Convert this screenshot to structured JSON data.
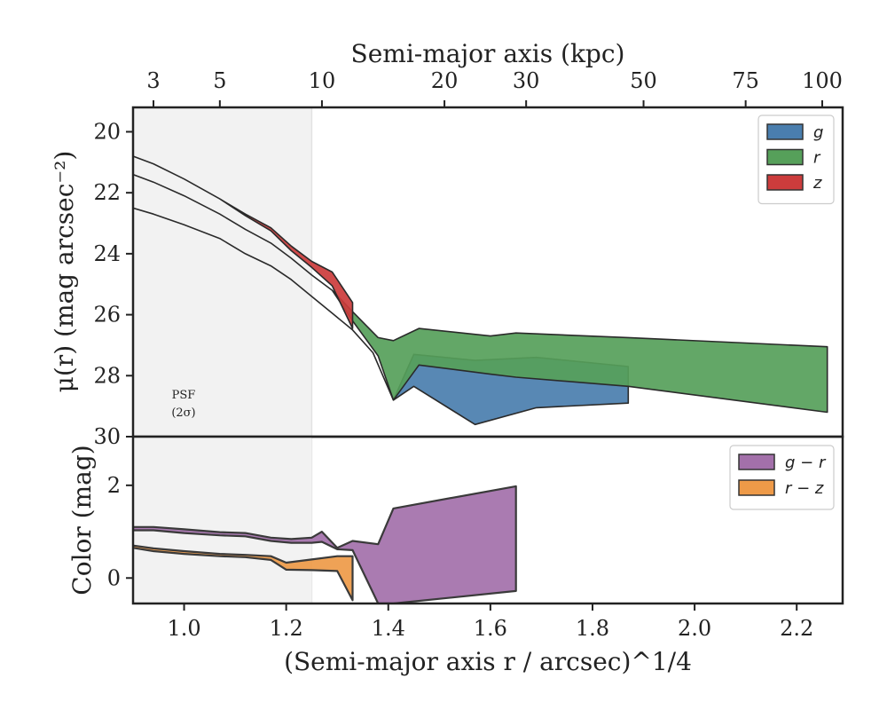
{
  "chart_data": [
    {
      "type": "area",
      "panel": "surface-brightness",
      "xlabel": "(Semi-major axis r / arcsec)^1/4",
      "ylabel": "μ(r) (mag arcsec⁻²)",
      "top_axis_label": "Semi-major axis (kpc)",
      "top_ticks": [
        {
          "label": "3",
          "x": 0.94
        },
        {
          "label": "5",
          "x": 1.07
        },
        {
          "label": "10",
          "x": 1.27
        },
        {
          "label": "20",
          "x": 1.51
        },
        {
          "label": "30",
          "x": 1.67
        },
        {
          "label": "50",
          "x": 1.9
        },
        {
          "label": "75",
          "x": 2.1
        },
        {
          "label": "100",
          "x": 2.25
        }
      ],
      "xlim": [
        0.9,
        2.29
      ],
      "ylim": [
        30,
        19.2
      ],
      "y_inverted": true,
      "yticks": [
        20,
        22,
        24,
        26,
        28,
        30
      ],
      "psf_shade_xmax": 1.25,
      "psf_label": [
        "PSF",
        "(2σ)"
      ],
      "legend_position": "top-right",
      "series": [
        {
          "name": "g",
          "color": "#4a7eae",
          "x": [
            0.9,
            0.94,
            1.0,
            1.07,
            1.12,
            1.17,
            1.21,
            1.25,
            1.29,
            1.33,
            1.37,
            1.41,
            1.45,
            1.57,
            1.69,
            1.87
          ],
          "bright": [
            22.5,
            22.7,
            23.05,
            23.5,
            24.0,
            24.4,
            24.85,
            25.4,
            25.95,
            26.5,
            27.25,
            28.8,
            27.3,
            27.5,
            27.4,
            27.7
          ],
          "faint": [
            22.5,
            22.7,
            23.05,
            23.5,
            24.0,
            24.4,
            24.85,
            25.4,
            25.95,
            26.5,
            27.25,
            28.8,
            28.35,
            29.6,
            29.05,
            28.9
          ]
        },
        {
          "name": "r",
          "color": "#56a05a",
          "x": [
            0.9,
            0.94,
            1.0,
            1.07,
            1.12,
            1.17,
            1.21,
            1.25,
            1.29,
            1.33,
            1.38,
            1.41,
            1.46,
            1.6,
            1.65,
            1.87,
            2.26
          ],
          "bright": [
            21.4,
            21.65,
            22.1,
            22.7,
            23.2,
            23.65,
            24.15,
            24.7,
            25.2,
            25.9,
            26.75,
            26.85,
            26.45,
            26.7,
            26.6,
            26.75,
            27.05
          ],
          "faint": [
            21.4,
            21.65,
            22.1,
            22.7,
            23.2,
            23.65,
            24.15,
            24.7,
            25.2,
            26.2,
            27.35,
            28.8,
            27.65,
            27.95,
            28.05,
            28.35,
            29.2
          ]
        },
        {
          "name": "z",
          "color": "#cc3c3c",
          "x": [
            0.9,
            0.94,
            1.0,
            1.07,
            1.12,
            1.17,
            1.21,
            1.25,
            1.29,
            1.33
          ],
          "bright": [
            20.8,
            21.05,
            21.55,
            22.2,
            22.7,
            23.15,
            23.75,
            24.25,
            24.6,
            25.6
          ],
          "faint": [
            20.8,
            21.05,
            21.55,
            22.2,
            22.75,
            23.25,
            23.9,
            24.45,
            25.05,
            26.45
          ]
        }
      ]
    },
    {
      "type": "area",
      "panel": "color",
      "xlabel": "(Semi-major axis r / arcsec)^1/4",
      "ylabel": "Color (mag)",
      "xlim": [
        0.9,
        2.29
      ],
      "ylim": [
        -0.55,
        3.05
      ],
      "yticks": [
        0,
        2
      ],
      "xticks": [
        1.0,
        1.2,
        1.4,
        1.6,
        1.8,
        2.0,
        2.2
      ],
      "xtick_labels": [
        "1.0",
        "1.2",
        "1.4",
        "1.6",
        "1.8",
        "2.0",
        "2.2"
      ],
      "legend_position": "top-right",
      "series": [
        {
          "name": "g − r",
          "color": "#a370aa",
          "x": [
            0.9,
            0.94,
            1.0,
            1.07,
            1.12,
            1.17,
            1.21,
            1.25,
            1.27,
            1.3,
            1.33,
            1.38,
            1.41,
            1.65
          ],
          "upper": [
            1.1,
            1.1,
            1.05,
            0.99,
            0.97,
            0.87,
            0.84,
            0.87,
            1.0,
            0.65,
            0.8,
            0.73,
            1.5,
            1.98
          ],
          "lower": [
            1.03,
            1.03,
            0.97,
            0.92,
            0.9,
            0.8,
            0.76,
            0.76,
            0.78,
            0.62,
            0.6,
            -0.55,
            -0.55,
            -0.28
          ]
        },
        {
          "name": "r − z",
          "color": "#ee9a48",
          "x": [
            0.9,
            0.94,
            1.0,
            1.07,
            1.12,
            1.17,
            1.2,
            1.25,
            1.3,
            1.33
          ],
          "upper": [
            0.7,
            0.64,
            0.58,
            0.52,
            0.5,
            0.47,
            0.33,
            0.4,
            0.47,
            0.47
          ],
          "lower": [
            0.65,
            0.58,
            0.52,
            0.47,
            0.45,
            0.39,
            0.18,
            0.17,
            0.15,
            -0.48
          ]
        }
      ]
    }
  ]
}
